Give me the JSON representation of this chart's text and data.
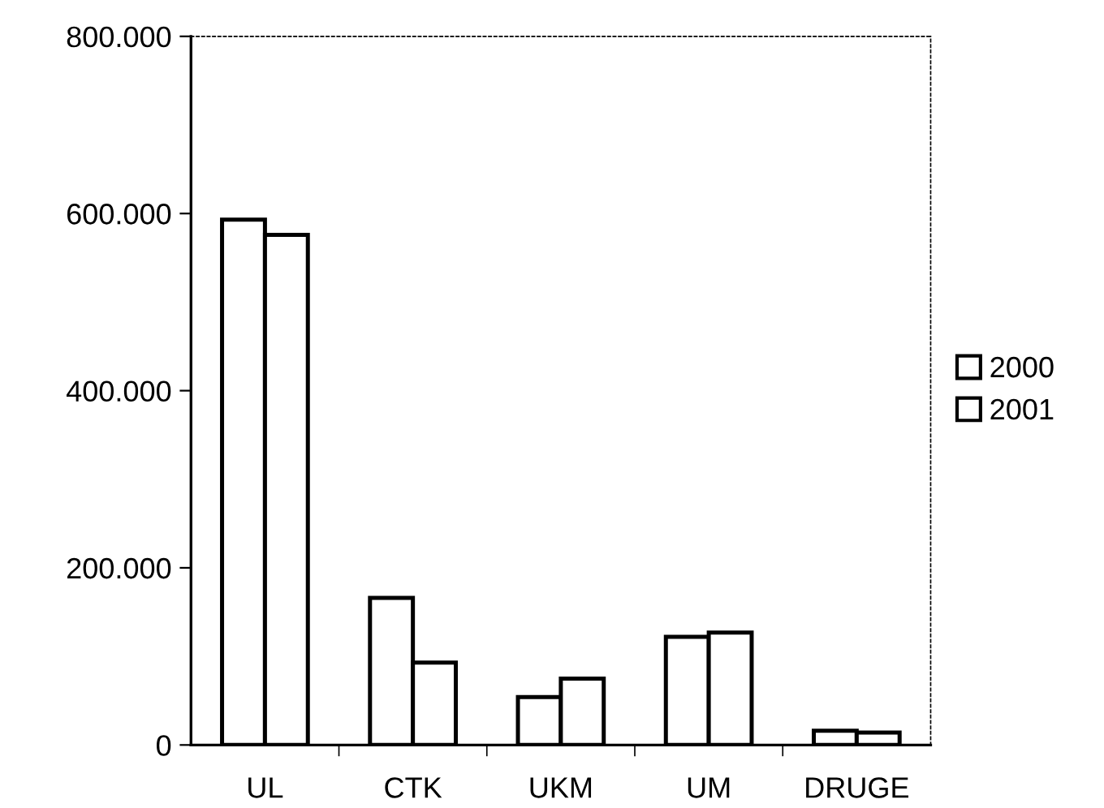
{
  "chart_data": {
    "type": "bar",
    "categories": [
      "UL",
      "CTK",
      "UKM",
      "UM",
      "DRUGE"
    ],
    "series": [
      {
        "name": "2000",
        "color": "#ffffff",
        "values": [
          593000,
          166000,
          54000,
          122000,
          16000
        ]
      },
      {
        "name": "2001",
        "color": "#ffffff",
        "values": [
          576000,
          93000,
          75000,
          127000,
          14000
        ]
      }
    ],
    "ylim": [
      0,
      800000
    ],
    "yticks": [
      {
        "value": 0,
        "label": "0"
      },
      {
        "value": 200000,
        "label": "200.000"
      },
      {
        "value": 400000,
        "label": "400.000"
      },
      {
        "value": 600000,
        "label": "600.000"
      },
      {
        "value": 800000,
        "label": "800.000"
      }
    ],
    "grid": false,
    "legend": "right"
  }
}
